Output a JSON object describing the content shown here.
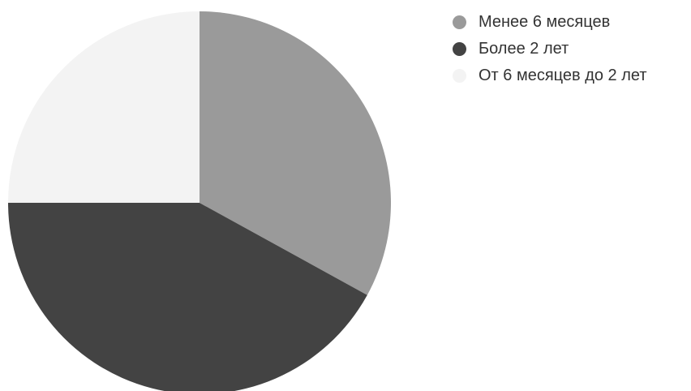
{
  "chart_data": {
    "type": "pie",
    "start": "top",
    "direction": "clockwise",
    "legend_position": "top-right",
    "slices": [
      {
        "label": "Менее 6 месяцев",
        "value": 33,
        "color": "#9a9a9a"
      },
      {
        "label": "Более 2 лет",
        "value": 42,
        "color": "#434343"
      },
      {
        "label": "От 6 месяцев до 2 лет",
        "value": 25,
        "color": "#f3f3f3"
      }
    ]
  }
}
